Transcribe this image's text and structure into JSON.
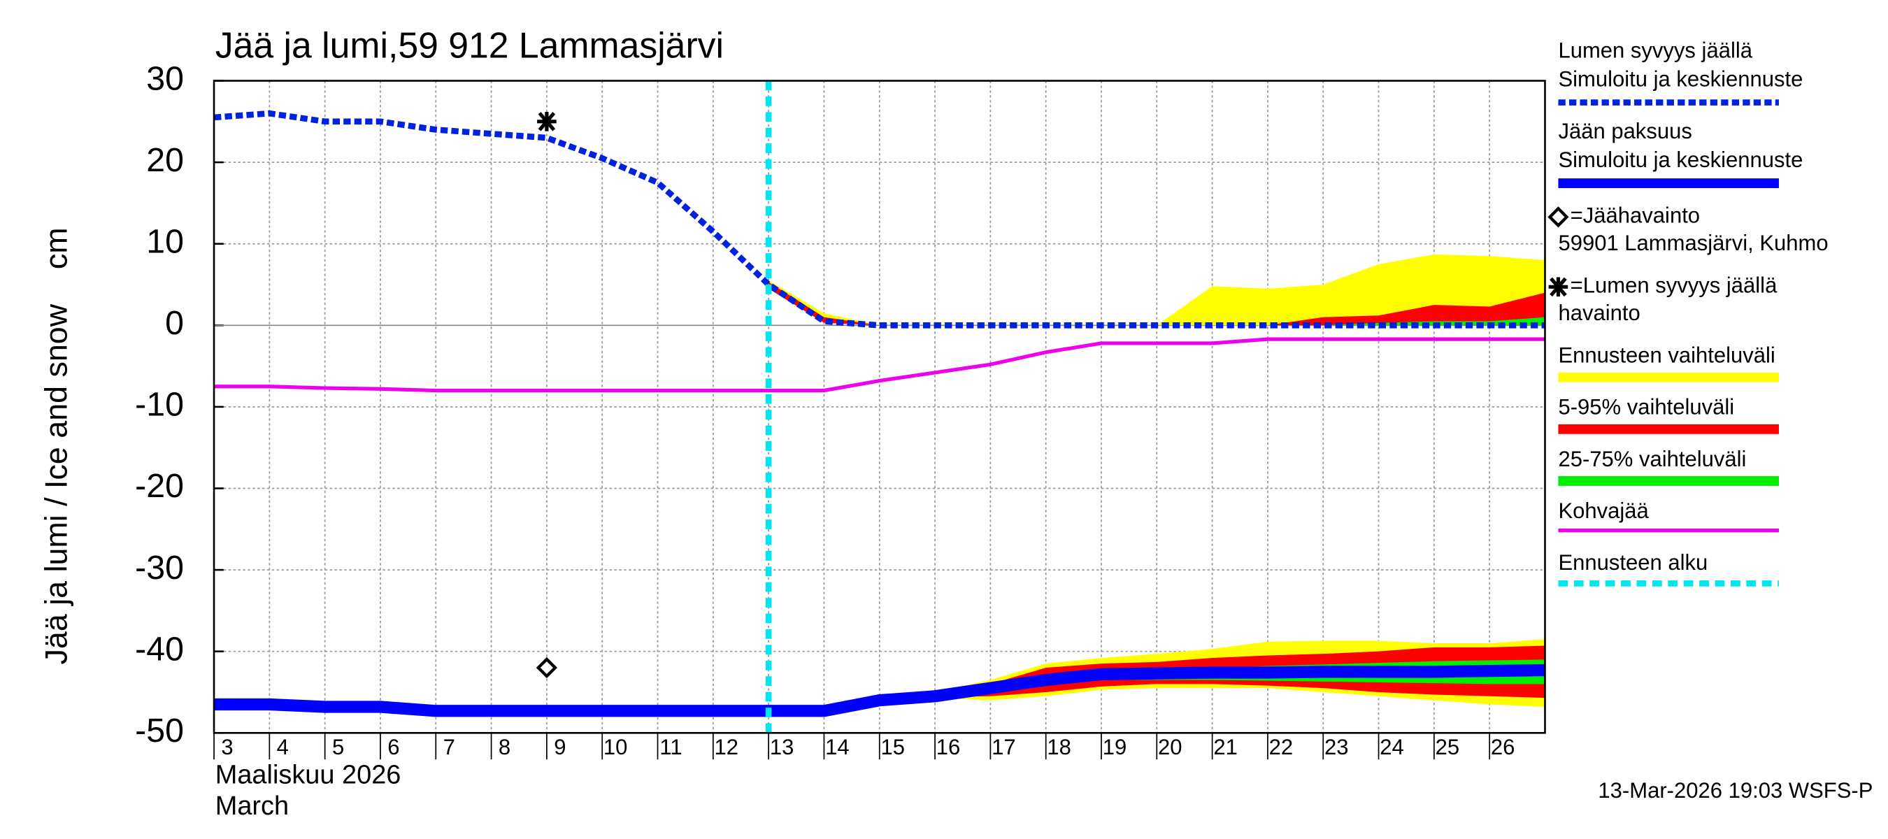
{
  "chart_data": {
    "type": "line",
    "title": "Jää ja lumi,59 912 Lammasjärvi",
    "y_label": "Jää ja lumi / Ice and snow    cm",
    "x_label": "Maaliskuu 2026",
    "x_label_2": "March",
    "footer": "13-Mar-2026 19:03 WSFS-P",
    "xlim": [
      3,
      27
    ],
    "xticks": [
      3,
      4,
      5,
      6,
      7,
      8,
      9,
      10,
      11,
      12,
      13,
      14,
      15,
      16,
      17,
      18,
      19,
      20,
      21,
      22,
      23,
      24,
      25,
      26
    ],
    "ylim": [
      -50,
      30
    ],
    "yticks": [
      -50,
      -40,
      -30,
      -20,
      -10,
      0,
      10,
      20,
      30
    ],
    "grid": true,
    "bands": [
      {
        "name": "Ennusteen vaihteluväli",
        "color": "#ffff00",
        "pieces": [
          {
            "x": [
              13,
              14,
              15,
              16,
              17,
              18,
              19,
              20,
              21,
              22,
              23,
              24,
              25,
              26,
              27
            ],
            "lower": [
              4.5,
              0.3,
              0,
              0,
              0,
              0,
              0,
              0,
              0,
              0,
              0,
              0,
              0,
              0,
              0
            ],
            "upper": [
              5.5,
              1.5,
              0,
              0,
              0,
              0,
              0,
              0,
              4.8,
              4.5,
              5,
              7.5,
              8.7,
              8.5,
              8
            ]
          },
          {
            "x": [
              14,
              15,
              16,
              17,
              18,
              19,
              20,
              21,
              22,
              23,
              24,
              25,
              26,
              27
            ],
            "lower": [
              -47.3,
              -46.3,
              -45.7,
              -46,
              -45.5,
              -44.7,
              -44.5,
              -44.5,
              -44.5,
              -45,
              -45.5,
              -46,
              -46.5,
              -46.8
            ],
            "upper": [
              -47.3,
              -45.8,
              -45,
              -43.5,
              -41.5,
              -40.8,
              -40.3,
              -39.7,
              -38.8,
              -38.7,
              -38.7,
              -39,
              -39,
              -38.5
            ]
          }
        ]
      },
      {
        "name": "5-95% vaihteluväli",
        "color": "#ff0000",
        "pieces": [
          {
            "x": [
              13,
              14,
              15,
              16,
              17,
              18,
              19,
              20,
              21,
              22,
              23,
              24,
              25,
              26,
              27
            ],
            "lower": [
              4.5,
              0.3,
              0,
              0,
              0,
              0,
              0,
              0,
              0,
              0,
              0,
              0,
              0,
              0,
              0
            ],
            "upper": [
              5.3,
              1,
              0,
              0,
              0,
              0,
              0,
              0,
              0,
              0,
              1,
              1.2,
              2.5,
              2.3,
              4
            ]
          },
          {
            "x": [
              14,
              15,
              16,
              17,
              18,
              19,
              20,
              21,
              22,
              23,
              24,
              25,
              26,
              27
            ],
            "lower": [
              -47.3,
              -46.3,
              -45.6,
              -45.5,
              -45,
              -44.3,
              -44,
              -44,
              -44.2,
              -44.5,
              -45,
              -45.3,
              -45.5,
              -45.7
            ],
            "upper": [
              -47.3,
              -45.8,
              -45.1,
              -44,
              -42,
              -41.5,
              -41.3,
              -40.8,
              -40.5,
              -40.3,
              -40,
              -39.5,
              -39.5,
              -39.3
            ]
          }
        ]
      },
      {
        "name": "25-75% vaihteluväli",
        "color": "#00ee00",
        "pieces": [
          {
            "x": [
              23,
              24,
              25,
              26,
              27
            ],
            "lower": [
              0,
              0,
              0,
              0,
              0
            ],
            "upper": [
              0,
              0.3,
              0.5,
              0.5,
              1
            ]
          },
          {
            "x": [
              18,
              19,
              20,
              21,
              22,
              23,
              24,
              25,
              26,
              27
            ],
            "lower": [
              -43.8,
              -43.5,
              -43.5,
              -43.5,
              -43.6,
              -43.7,
              -43.8,
              -43.9,
              -44,
              -44
            ],
            "upper": [
              -43,
              -42.5,
              -42.3,
              -42,
              -41.8,
              -41.6,
              -41.4,
              -41.2,
              -41.1,
              -41
            ]
          }
        ]
      }
    ],
    "series": [
      {
        "name": "Kohvajää",
        "color": "#ee00ee",
        "width": 3,
        "dashed": false,
        "x": [
          3,
          4,
          5,
          6,
          7,
          8,
          9,
          10,
          11,
          12,
          13,
          14,
          15,
          16,
          17,
          18,
          19,
          20,
          21,
          22,
          23,
          24,
          25,
          26,
          27
        ],
        "values": [
          -7.5,
          -7.5,
          -7.7,
          -7.8,
          -8,
          -8,
          -8,
          -8,
          -8,
          -8,
          -8,
          -8,
          -6.8,
          -5.8,
          -4.8,
          -3.3,
          -2.2,
          -2.2,
          -2.2,
          -1.7,
          -1.7,
          -1.7,
          -1.7,
          -1.7,
          -1.7
        ]
      },
      {
        "name": "Jään paksuus",
        "note": "Simuloitu ja keskiennuste",
        "color": "#0000ff",
        "width": 10,
        "dashed": false,
        "x": [
          3,
          4,
          5,
          6,
          7,
          8,
          9,
          10,
          11,
          12,
          13,
          14,
          15,
          16,
          17,
          18,
          19,
          20,
          21,
          22,
          23,
          24,
          25,
          26,
          27
        ],
        "values": [
          -46.5,
          -46.5,
          -46.8,
          -46.8,
          -47.3,
          -47.3,
          -47.3,
          -47.3,
          -47.3,
          -47.3,
          -47.3,
          -47.3,
          -46,
          -45.5,
          -44.5,
          -43.5,
          -42.8,
          -42.7,
          -42.6,
          -42.6,
          -42.5,
          -42.5,
          -42.5,
          -42.4,
          -42.3
        ]
      },
      {
        "name": "Lumen syvyys jäällä",
        "note": "Simuloitu ja keskiennuste",
        "color": "#0022dd",
        "width": 5,
        "dashed": true,
        "x": [
          3,
          4,
          5,
          6,
          7,
          8,
          9,
          10,
          11,
          12,
          13,
          14,
          15,
          16,
          17,
          18,
          19,
          20,
          21,
          22,
          23,
          24,
          25,
          26,
          27
        ],
        "values": [
          25.5,
          26,
          25,
          25,
          24,
          23.5,
          23,
          20.5,
          17.5,
          11.5,
          5,
          0.5,
          0,
          0,
          0,
          0,
          0,
          0,
          0,
          0,
          0,
          0,
          0,
          0,
          0
        ]
      }
    ],
    "observations": [
      {
        "name": "=Jäähavainto",
        "note": "59901 Lammasjärvi, Kuhmo",
        "marker": "diamond",
        "x": [
          9
        ],
        "values": [
          -42
        ]
      },
      {
        "name": "=Lumen syvyys jäällä",
        "note": "havainto",
        "marker": "star",
        "x": [
          9
        ],
        "values": [
          25
        ]
      }
    ],
    "forecast_start": {
      "name": "Ennusteen alku",
      "x": 13,
      "color": "#00e5ee"
    }
  }
}
